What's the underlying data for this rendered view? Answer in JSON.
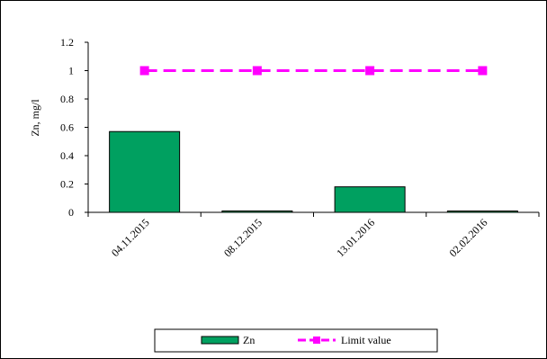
{
  "chart_data": {
    "type": "bar",
    "categories": [
      "04.11.2015",
      "08.12.2015",
      "13.01.2016",
      "02.02.2016"
    ],
    "series": [
      {
        "name": "Zn",
        "type": "bar",
        "values": [
          0.57,
          0.01,
          0.18,
          0.005
        ],
        "color": "#00A060"
      },
      {
        "name": "Limit value",
        "type": "line",
        "values": [
          1,
          1,
          1,
          1
        ],
        "color": "#FF00FF",
        "line_style": "dashed",
        "marker": "square"
      }
    ],
    "title": "",
    "xlabel": "",
    "ylabel": "Zn, mg/l",
    "ylim": [
      0,
      1.2
    ],
    "yticks": [
      0,
      0.2,
      0.4,
      0.6,
      0.8,
      1,
      1.2
    ],
    "ytick_labels": [
      "0",
      "0.2",
      "0.4",
      "0.6",
      "0.8",
      "1",
      "1.2"
    ],
    "grid": false,
    "legend_position": "bottom"
  }
}
